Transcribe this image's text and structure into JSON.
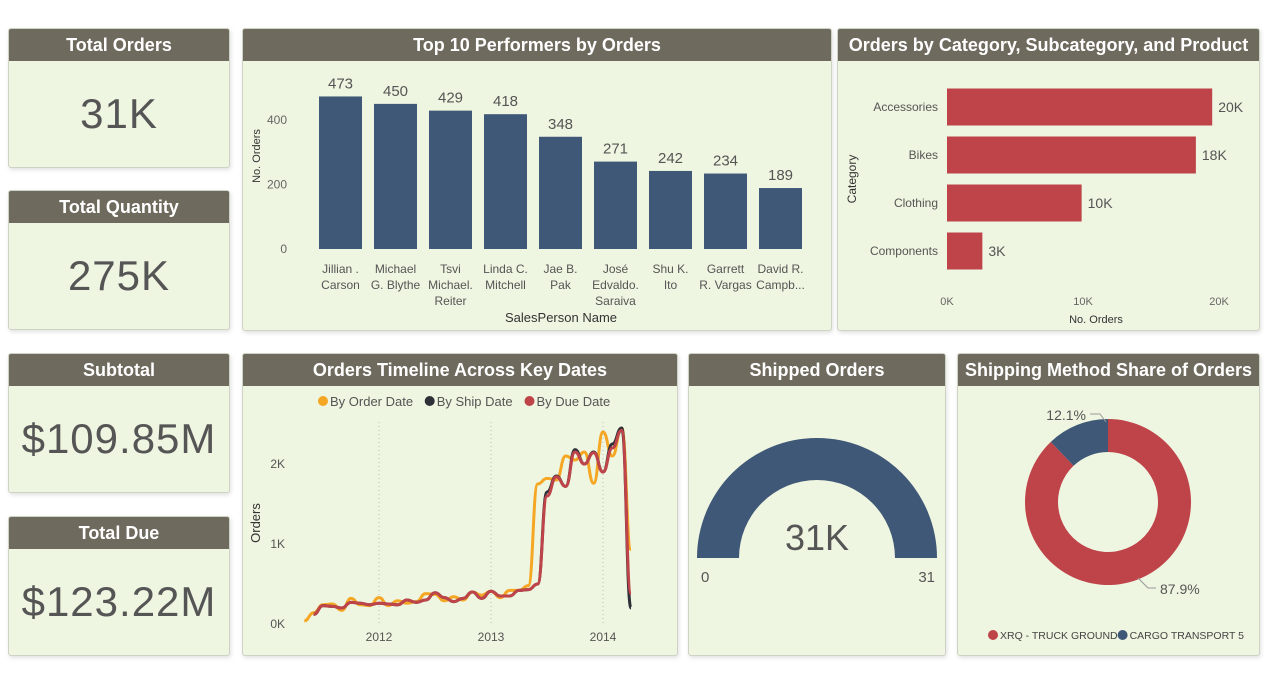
{
  "colors": {
    "header": "#6e6a5e",
    "panel": "#eef5e0",
    "bar_blue": "#3f5877",
    "bar_red": "#bf444a",
    "order_line": "#f5a623",
    "ship_line": "#2e3138",
    "due_line": "#bf444a"
  },
  "kpis": [
    {
      "title": "Total Orders",
      "value": "31K"
    },
    {
      "title": "Total Quantity",
      "value": "275K"
    },
    {
      "title": "Subtotal",
      "value": "$109.85M"
    },
    {
      "title": "Total Due",
      "value": "$123.22M"
    }
  ],
  "gauge": {
    "title": "Shipped Orders",
    "value_label": "31K",
    "min_label": "0",
    "max_label": "31",
    "fill_fraction": 1.0
  },
  "chart_data": [
    {
      "type": "bar",
      "title": "Top 10 Performers by Orders",
      "xlabel": "SalesPerson Name",
      "ylabel": "No. Orders",
      "categories": [
        [
          "Jillian .",
          "Carson"
        ],
        [
          "Michael",
          "G. Blythe"
        ],
        [
          "Tsvi",
          "Michael.",
          "Reiter"
        ],
        [
          "Linda C.",
          "Mitchell"
        ],
        [
          "Jae B.",
          "Pak"
        ],
        [
          "José",
          "Edvaldo.",
          "Saraiva"
        ],
        [
          "Shu K.",
          "Ito"
        ],
        [
          "Garrett",
          "R. Vargas"
        ],
        [
          "David R.",
          "Campb..."
        ]
      ],
      "values": [
        473,
        450,
        429,
        418,
        348,
        271,
        242,
        234,
        189
      ],
      "yticks": [
        "0",
        "200",
        "400"
      ],
      "ytick_values": [
        0,
        200,
        400
      ],
      "ylim": [
        0,
        480
      ],
      "color": "#3f5877"
    },
    {
      "type": "bar",
      "orientation": "horizontal",
      "title": "Orders by Category, Subcategory, and Product",
      "xlabel": "No. Orders",
      "ylabel": "Category",
      "categories": [
        "Accessories",
        "Bikes",
        "Clothing",
        "Components"
      ],
      "values": [
        19.5,
        18.3,
        9.9,
        2.6
      ],
      "data_labels": [
        "20K",
        "18K",
        "10K",
        "3K"
      ],
      "xticks": [
        "0K",
        "10K",
        "20K"
      ],
      "xtick_values": [
        0,
        10,
        20
      ],
      "xlim": [
        0,
        20
      ],
      "unit": "K",
      "color": "#bf444a"
    },
    {
      "type": "line",
      "title": "Orders Timeline Across Key Dates",
      "ylabel": "Orders",
      "xticks": [
        "2012",
        "2013",
        "2014"
      ],
      "yticks": [
        "0K",
        "1K",
        "2K"
      ],
      "ytick_values": [
        0,
        1000,
        2000
      ],
      "ylim": [
        0,
        2600
      ],
      "x_start": "2011-05",
      "x_step": "month",
      "series": [
        {
          "name": "By Order Date",
          "color": "#f5a623",
          "start": "2011-05",
          "values": [
            40,
            140,
            240,
            250,
            170,
            320,
            240,
            230,
            330,
            230,
            290,
            260,
            280,
            380,
            370,
            290,
            340,
            300,
            400,
            360,
            410,
            330,
            420,
            420,
            480,
            1750,
            1820,
            1800,
            2100,
            2050,
            2150,
            1760,
            2400,
            2100,
            2450,
            930
          ]
        },
        {
          "name": "By Ship Date",
          "color": "#2e3138",
          "start": "2011-06",
          "values": [
            120,
            230,
            220,
            200,
            270,
            260,
            240,
            260,
            250,
            240,
            300,
            270,
            300,
            390,
            330,
            280,
            320,
            400,
            320,
            410,
            350,
            350,
            420,
            430,
            500,
            1650,
            1850,
            1720,
            2180,
            2000,
            2150,
            1900,
            2250,
            2450,
            200
          ]
        },
        {
          "name": "By Due Date",
          "color": "#bf444a",
          "start": "2011-06",
          "values": [
            120,
            230,
            220,
            200,
            270,
            260,
            240,
            260,
            250,
            240,
            300,
            270,
            300,
            390,
            330,
            280,
            320,
            400,
            320,
            410,
            350,
            350,
            420,
            430,
            500,
            1600,
            1840,
            1720,
            2150,
            2000,
            2140,
            1900,
            2200,
            2420,
            380
          ]
        }
      ],
      "legend": "top"
    },
    {
      "type": "pie",
      "donut": true,
      "title": "Shipping Method Share of Orders",
      "slices": [
        {
          "name": "XRQ - TRUCK GROUND",
          "value": 87.9,
          "label": "87.9%",
          "color": "#bf444a"
        },
        {
          "name": "CARGO TRANSPORT 5",
          "value": 12.1,
          "label": "12.1%",
          "color": "#3f5877"
        }
      ],
      "legend": "bottom"
    }
  ]
}
